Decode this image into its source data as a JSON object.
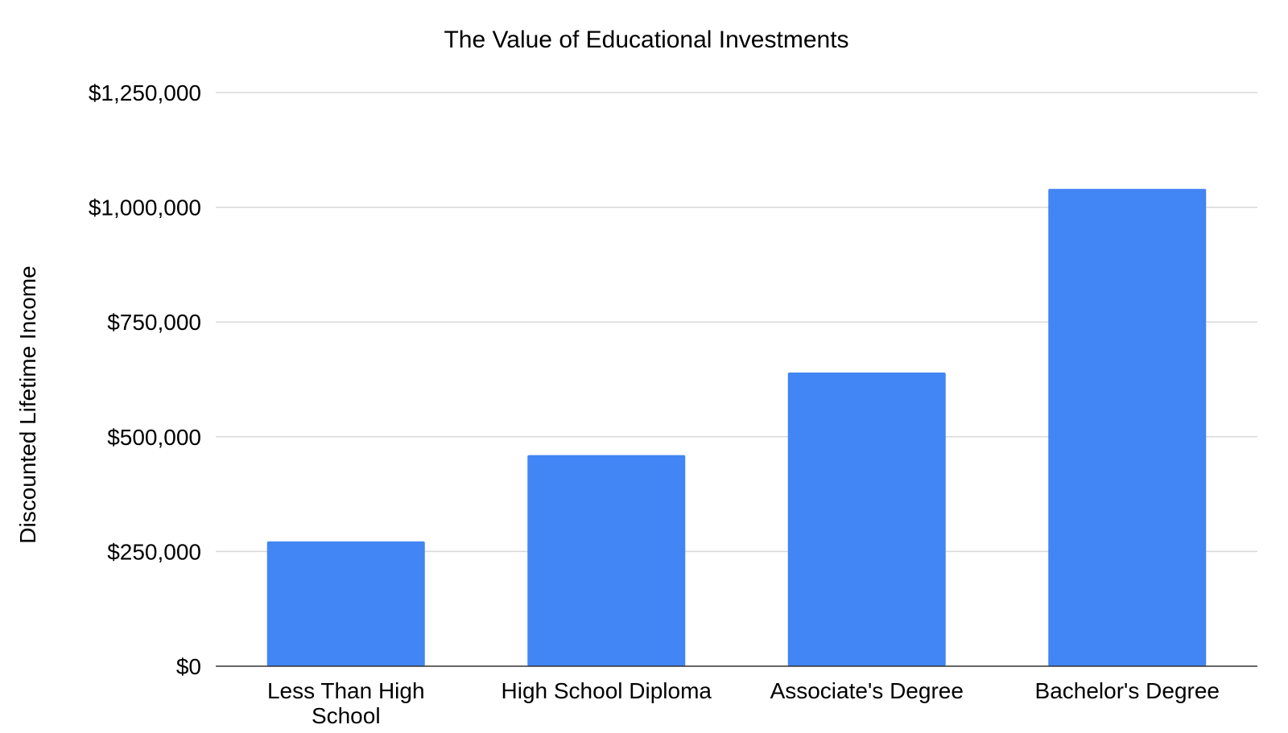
{
  "chart_data": {
    "type": "bar",
    "title": "The Value of Educational Investments",
    "xlabel": "",
    "ylabel": "Discounted Lifetime Income",
    "categories": [
      [
        "Less Than High",
        "School"
      ],
      [
        "High School Diploma"
      ],
      [
        "Associate's Degree"
      ],
      [
        "Bachelor's Degree"
      ]
    ],
    "values": [
      272000,
      460000,
      640000,
      1040000
    ],
    "ylim": [
      0,
      1250000
    ],
    "yticks": [
      0,
      250000,
      500000,
      750000,
      1000000,
      1250000
    ],
    "ytick_labels": [
      "$0",
      "$250,000",
      "$500,000",
      "$750,000",
      "$1,000,000",
      "$1,250,000"
    ],
    "grid": true,
    "legend": "none",
    "colors": {
      "bar": "#4285f4",
      "grid": "#d9d9d9",
      "baseline": "#333333",
      "text": "#000000"
    }
  }
}
